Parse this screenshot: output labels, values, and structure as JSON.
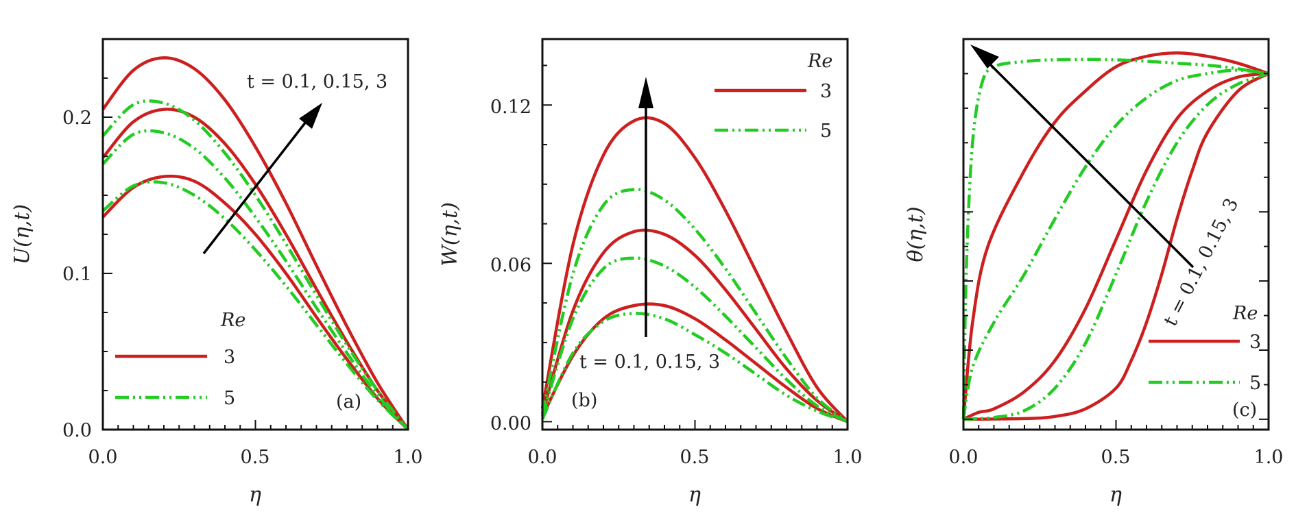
{
  "colors": {
    "re3": "#cc1f1f",
    "re5": "#22cc22",
    "axis": "#111111",
    "arrow": "#000000"
  },
  "chart_data": [
    {
      "type": "line",
      "panel_label": "(a)",
      "xlabel": "η",
      "ylabel": "U(η,t)",
      "xlim": [
        0,
        1
      ],
      "ylim": [
        0,
        0.25
      ],
      "xticks": [
        0,
        0.5,
        1
      ],
      "xtick_labels": [
        "0.0",
        "0.5",
        "1.0"
      ],
      "yticks": [
        0,
        0.1,
        0.2
      ],
      "ytick_labels": [
        "0.0",
        "0.1",
        "0.2"
      ],
      "legend": {
        "title": "Re",
        "entries": [
          "3",
          "5"
        ],
        "location": "lower-left"
      },
      "annotation": {
        "text": "t = 0.1, 0.15, 3",
        "arrow": "up-right"
      },
      "series": [
        {
          "Re": "3",
          "t": 0.1,
          "points": [
            [
              0,
              0.136
            ],
            [
              0.1,
              0.155
            ],
            [
              0.2,
              0.162
            ],
            [
              0.3,
              0.159
            ],
            [
              0.4,
              0.145
            ],
            [
              0.5,
              0.125
            ],
            [
              0.6,
              0.1
            ],
            [
              0.7,
              0.072
            ],
            [
              0.8,
              0.045
            ],
            [
              0.9,
              0.02
            ],
            [
              1,
              0
            ]
          ]
        },
        {
          "Re": "3",
          "t": 0.15,
          "points": [
            [
              0,
              0.174
            ],
            [
              0.1,
              0.197
            ],
            [
              0.2,
              0.205
            ],
            [
              0.3,
              0.2
            ],
            [
              0.4,
              0.183
            ],
            [
              0.5,
              0.157
            ],
            [
              0.6,
              0.125
            ],
            [
              0.7,
              0.09
            ],
            [
              0.8,
              0.056
            ],
            [
              0.9,
              0.025
            ],
            [
              1,
              0
            ]
          ]
        },
        {
          "Re": "3",
          "t": 3,
          "points": [
            [
              0,
              0.205
            ],
            [
              0.1,
              0.23
            ],
            [
              0.2,
              0.238
            ],
            [
              0.3,
              0.231
            ],
            [
              0.4,
              0.211
            ],
            [
              0.5,
              0.181
            ],
            [
              0.6,
              0.145
            ],
            [
              0.7,
              0.105
            ],
            [
              0.8,
              0.066
            ],
            [
              0.9,
              0.03
            ],
            [
              1,
              0
            ]
          ]
        },
        {
          "Re": "5",
          "t": 0.1,
          "points": [
            [
              0,
              0.14
            ],
            [
              0.1,
              0.156
            ],
            [
              0.2,
              0.158
            ],
            [
              0.3,
              0.15
            ],
            [
              0.4,
              0.135
            ],
            [
              0.5,
              0.115
            ],
            [
              0.6,
              0.092
            ],
            [
              0.7,
              0.067
            ],
            [
              0.8,
              0.042
            ],
            [
              0.9,
              0.019
            ],
            [
              1,
              0
            ]
          ]
        },
        {
          "Re": "5",
          "t": 0.15,
          "points": [
            [
              0,
              0.17
            ],
            [
              0.1,
              0.189
            ],
            [
              0.2,
              0.19
            ],
            [
              0.3,
              0.18
            ],
            [
              0.4,
              0.161
            ],
            [
              0.5,
              0.136
            ],
            [
              0.6,
              0.108
            ],
            [
              0.7,
              0.078
            ],
            [
              0.8,
              0.049
            ],
            [
              0.9,
              0.022
            ],
            [
              1,
              0
            ]
          ]
        },
        {
          "Re": "5",
          "t": 3,
          "points": [
            [
              0,
              0.188
            ],
            [
              0.1,
              0.208
            ],
            [
              0.2,
              0.209
            ],
            [
              0.3,
              0.198
            ],
            [
              0.4,
              0.177
            ],
            [
              0.5,
              0.15
            ],
            [
              0.6,
              0.119
            ],
            [
              0.7,
              0.086
            ],
            [
              0.8,
              0.054
            ],
            [
              0.9,
              0.025
            ],
            [
              1,
              0
            ]
          ]
        }
      ]
    },
    {
      "type": "line",
      "panel_label": "(b)",
      "xlabel": "η",
      "ylabel": "W(η,t)",
      "xlim": [
        0,
        1
      ],
      "ylim": [
        -0.003,
        0.145
      ],
      "xticks": [
        0,
        0.5,
        1
      ],
      "xtick_labels": [
        "0.0",
        "0.5",
        "1.0"
      ],
      "yticks": [
        0,
        0.06,
        0.12
      ],
      "ytick_labels": [
        "0.00",
        "0.06",
        "0.12"
      ],
      "legend": {
        "title": "Re",
        "entries": [
          "3",
          "5"
        ],
        "location": "upper-right"
      },
      "annotation": {
        "text": "t = 0.1, 0.15, 3",
        "arrow": "up"
      },
      "series": [
        {
          "Re": "3",
          "t": 0.1,
          "points": [
            [
              0,
              0.002
            ],
            [
              0.1,
              0.025
            ],
            [
              0.2,
              0.039
            ],
            [
              0.3,
              0.044
            ],
            [
              0.4,
              0.044
            ],
            [
              0.5,
              0.039
            ],
            [
              0.6,
              0.031
            ],
            [
              0.7,
              0.022
            ],
            [
              0.8,
              0.013
            ],
            [
              0.9,
              0.005
            ],
            [
              1,
              0
            ]
          ]
        },
        {
          "Re": "3",
          "t": 0.15,
          "points": [
            [
              0,
              0.003
            ],
            [
              0.1,
              0.042
            ],
            [
              0.2,
              0.064
            ],
            [
              0.3,
              0.072
            ],
            [
              0.4,
              0.071
            ],
            [
              0.5,
              0.063
            ],
            [
              0.6,
              0.05
            ],
            [
              0.7,
              0.035
            ],
            [
              0.8,
              0.02
            ],
            [
              0.9,
              0.008
            ],
            [
              1,
              0
            ]
          ]
        },
        {
          "Re": "3",
          "t": 3,
          "points": [
            [
              0,
              0.005
            ],
            [
              0.1,
              0.067
            ],
            [
              0.2,
              0.101
            ],
            [
              0.3,
              0.114
            ],
            [
              0.4,
              0.113
            ],
            [
              0.5,
              0.1
            ],
            [
              0.6,
              0.08
            ],
            [
              0.7,
              0.057
            ],
            [
              0.8,
              0.034
            ],
            [
              0.9,
              0.013
            ],
            [
              1,
              0
            ]
          ]
        },
        {
          "Re": "5",
          "t": 0.1,
          "points": [
            [
              0,
              0.001
            ],
            [
              0.1,
              0.026
            ],
            [
              0.2,
              0.038
            ],
            [
              0.3,
              0.041
            ],
            [
              0.4,
              0.039
            ],
            [
              0.5,
              0.033
            ],
            [
              0.6,
              0.026
            ],
            [
              0.7,
              0.018
            ],
            [
              0.8,
              0.01
            ],
            [
              0.9,
              0.004
            ],
            [
              1,
              0
            ]
          ]
        },
        {
          "Re": "5",
          "t": 0.15,
          "points": [
            [
              0,
              0.002
            ],
            [
              0.1,
              0.039
            ],
            [
              0.2,
              0.058
            ],
            [
              0.3,
              0.062
            ],
            [
              0.4,
              0.059
            ],
            [
              0.5,
              0.051
            ],
            [
              0.6,
              0.04
            ],
            [
              0.7,
              0.028
            ],
            [
              0.8,
              0.016
            ],
            [
              0.9,
              0.006
            ],
            [
              1,
              0
            ]
          ]
        },
        {
          "Re": "5",
          "t": 3,
          "points": [
            [
              0,
              0.003
            ],
            [
              0.1,
              0.056
            ],
            [
              0.2,
              0.082
            ],
            [
              0.3,
              0.088
            ],
            [
              0.4,
              0.084
            ],
            [
              0.5,
              0.073
            ],
            [
              0.6,
              0.058
            ],
            [
              0.7,
              0.041
            ],
            [
              0.8,
              0.024
            ],
            [
              0.9,
              0.009
            ],
            [
              1,
              0
            ]
          ]
        }
      ]
    },
    {
      "type": "line",
      "panel_label": "(c)",
      "xlabel": "η",
      "ylabel": "θ(η,t)",
      "xlim": [
        0,
        1
      ],
      "ylim": [
        -0.03,
        1.1
      ],
      "xticks": [
        0,
        0.5,
        1
      ],
      "xtick_labels": [
        "0.0",
        "0.5",
        "1.0"
      ],
      "yticks": [],
      "ytick_labels": [],
      "legend": {
        "title": "Re",
        "entries": [
          "3",
          "5"
        ],
        "location": "lower-right"
      },
      "annotation": {
        "text": "t = 0.1, 0.15, 3",
        "arrow": "up-left"
      },
      "series": [
        {
          "Re": "3",
          "t": 0.1,
          "points": [
            [
              0,
              0
            ],
            [
              0.2,
              0.002
            ],
            [
              0.3,
              0.008
            ],
            [
              0.4,
              0.03
            ],
            [
              0.5,
              0.09
            ],
            [
              0.55,
              0.17
            ],
            [
              0.6,
              0.28
            ],
            [
              0.65,
              0.42
            ],
            [
              0.7,
              0.58
            ],
            [
              0.75,
              0.72
            ],
            [
              0.8,
              0.83
            ],
            [
              0.9,
              0.95
            ],
            [
              1,
              1
            ]
          ]
        },
        {
          "Re": "3",
          "t": 0.15,
          "points": [
            [
              0,
              0
            ],
            [
              0.05,
              0.02
            ],
            [
              0.1,
              0.03
            ],
            [
              0.2,
              0.08
            ],
            [
              0.3,
              0.17
            ],
            [
              0.4,
              0.32
            ],
            [
              0.5,
              0.52
            ],
            [
              0.6,
              0.72
            ],
            [
              0.7,
              0.87
            ],
            [
              0.8,
              0.95
            ],
            [
              0.9,
              0.99
            ],
            [
              1,
              1
            ]
          ]
        },
        {
          "Re": "3",
          "t": 3,
          "points": [
            [
              0,
              0
            ],
            [
              0.03,
              0.28
            ],
            [
              0.08,
              0.5
            ],
            [
              0.2,
              0.72
            ],
            [
              0.3,
              0.86
            ],
            [
              0.4,
              0.95
            ],
            [
              0.5,
              1.02
            ],
            [
              0.6,
              1.05
            ],
            [
              0.7,
              1.06
            ],
            [
              0.8,
              1.05
            ],
            [
              0.9,
              1.03
            ],
            [
              1,
              1
            ]
          ]
        },
        {
          "Re": "5",
          "t": 0.1,
          "points": [
            [
              0,
              0
            ],
            [
              0.1,
              0.005
            ],
            [
              0.2,
              0.025
            ],
            [
              0.3,
              0.09
            ],
            [
              0.4,
              0.22
            ],
            [
              0.5,
              0.42
            ],
            [
              0.6,
              0.63
            ],
            [
              0.7,
              0.8
            ],
            [
              0.8,
              0.91
            ],
            [
              0.9,
              0.97
            ],
            [
              1,
              1
            ]
          ]
        },
        {
          "Re": "5",
          "t": 0.15,
          "points": [
            [
              0,
              0
            ],
            [
              0.03,
              0.15
            ],
            [
              0.1,
              0.28
            ],
            [
              0.2,
              0.42
            ],
            [
              0.3,
              0.58
            ],
            [
              0.4,
              0.73
            ],
            [
              0.5,
              0.85
            ],
            [
              0.6,
              0.93
            ],
            [
              0.7,
              0.98
            ],
            [
              0.8,
              1.0
            ],
            [
              0.9,
              1.01
            ],
            [
              1,
              1
            ]
          ]
        },
        {
          "Re": "5",
          "t": 3,
          "points": [
            [
              0,
              0
            ],
            [
              0.01,
              0.45
            ],
            [
              0.03,
              0.8
            ],
            [
              0.06,
              0.97
            ],
            [
              0.1,
              1.02
            ],
            [
              0.2,
              1.035
            ],
            [
              0.3,
              1.04
            ],
            [
              0.5,
              1.04
            ],
            [
              0.7,
              1.03
            ],
            [
              0.85,
              1.02
            ],
            [
              1,
              1
            ]
          ]
        }
      ]
    }
  ]
}
